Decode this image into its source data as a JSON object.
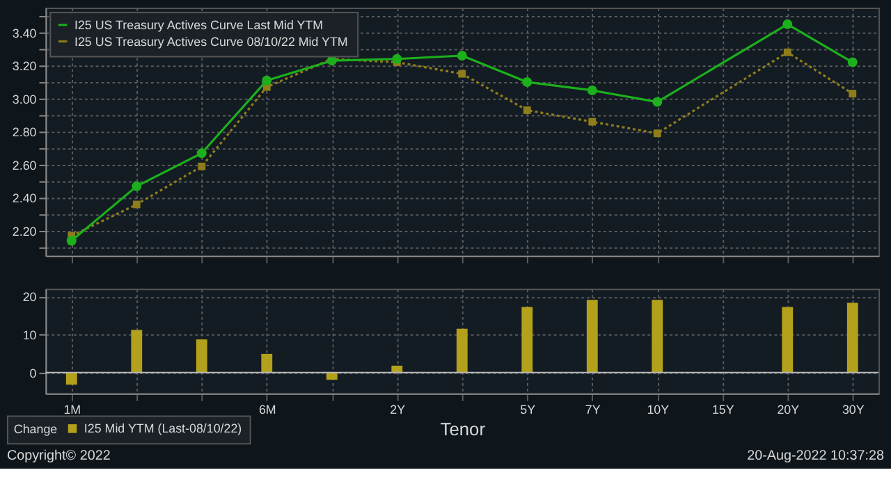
{
  "chart_data": [
    {
      "type": "line",
      "categories": [
        null,
        null,
        null,
        null,
        null,
        null,
        null,
        null,
        null,
        null,
        null,
        null,
        null
      ],
      "ylim": [
        2.05,
        3.55
      ],
      "yticks": [
        {
          "value": 2.1,
          "label": null
        },
        {
          "value": 2.2,
          "label": "2.20"
        },
        {
          "value": 2.3,
          "label": null
        },
        {
          "value": 2.4,
          "label": "2.40"
        },
        {
          "value": 2.5,
          "label": null
        },
        {
          "value": 2.6,
          "label": "2.60"
        },
        {
          "value": 2.7,
          "label": null
        },
        {
          "value": 2.8,
          "label": "2.80"
        },
        {
          "value": 2.9,
          "label": null
        },
        {
          "value": 3.0,
          "label": "3.00"
        },
        {
          "value": 3.1,
          "label": null
        },
        {
          "value": 3.2,
          "label": "3.20"
        },
        {
          "value": 3.3,
          "label": null
        },
        {
          "value": 3.4,
          "label": "3.40"
        },
        {
          "value": 3.5,
          "label": null
        }
      ],
      "grid": true,
      "legend": "top left",
      "series": [
        {
          "name": "I25 US Treasury Actives Curve Last Mid YTM",
          "color": "#1cb01c",
          "marker": "circle",
          "line_style": "solid",
          "values": [
            2.14,
            2.47,
            2.67,
            3.11,
            3.23,
            3.24,
            3.26,
            3.1,
            3.05,
            2.98,
            null,
            3.45,
            3.22
          ]
        },
        {
          "name": "I25 US Treasury Actives Curve 08/10/22 Mid YTM",
          "color": "#8f7d1c",
          "marker": "square",
          "line_style": "dotted",
          "values": [
            2.17,
            2.36,
            2.59,
            3.07,
            3.24,
            3.22,
            3.15,
            2.93,
            2.86,
            2.79,
            null,
            3.28,
            3.03
          ]
        }
      ]
    },
    {
      "type": "bar",
      "categories": [
        "1M",
        null,
        null,
        "6M",
        null,
        "2Y",
        null,
        "5Y",
        "7Y",
        "10Y",
        "15Y",
        "20Y",
        "30Y"
      ],
      "ylim": [
        -5.5,
        22
      ],
      "yticks": [
        0,
        10,
        20
      ],
      "grid": true,
      "legend": "bottom left",
      "legend_title": "Change",
      "xlabel": "Tenor",
      "series": [
        {
          "name": "I25 Mid YTM (Last-08/10/22)",
          "color": "#b3a11b",
          "values": [
            -3.2,
            11.2,
            8.7,
            4.9,
            -1.9,
            1.8,
            11.5,
            17.2,
            19.1,
            19.1,
            null,
            17.2,
            18.3
          ]
        }
      ],
      "annotations": [
        "Copyright© 2022",
        "20-Aug-2022 10:37:28"
      ]
    }
  ]
}
